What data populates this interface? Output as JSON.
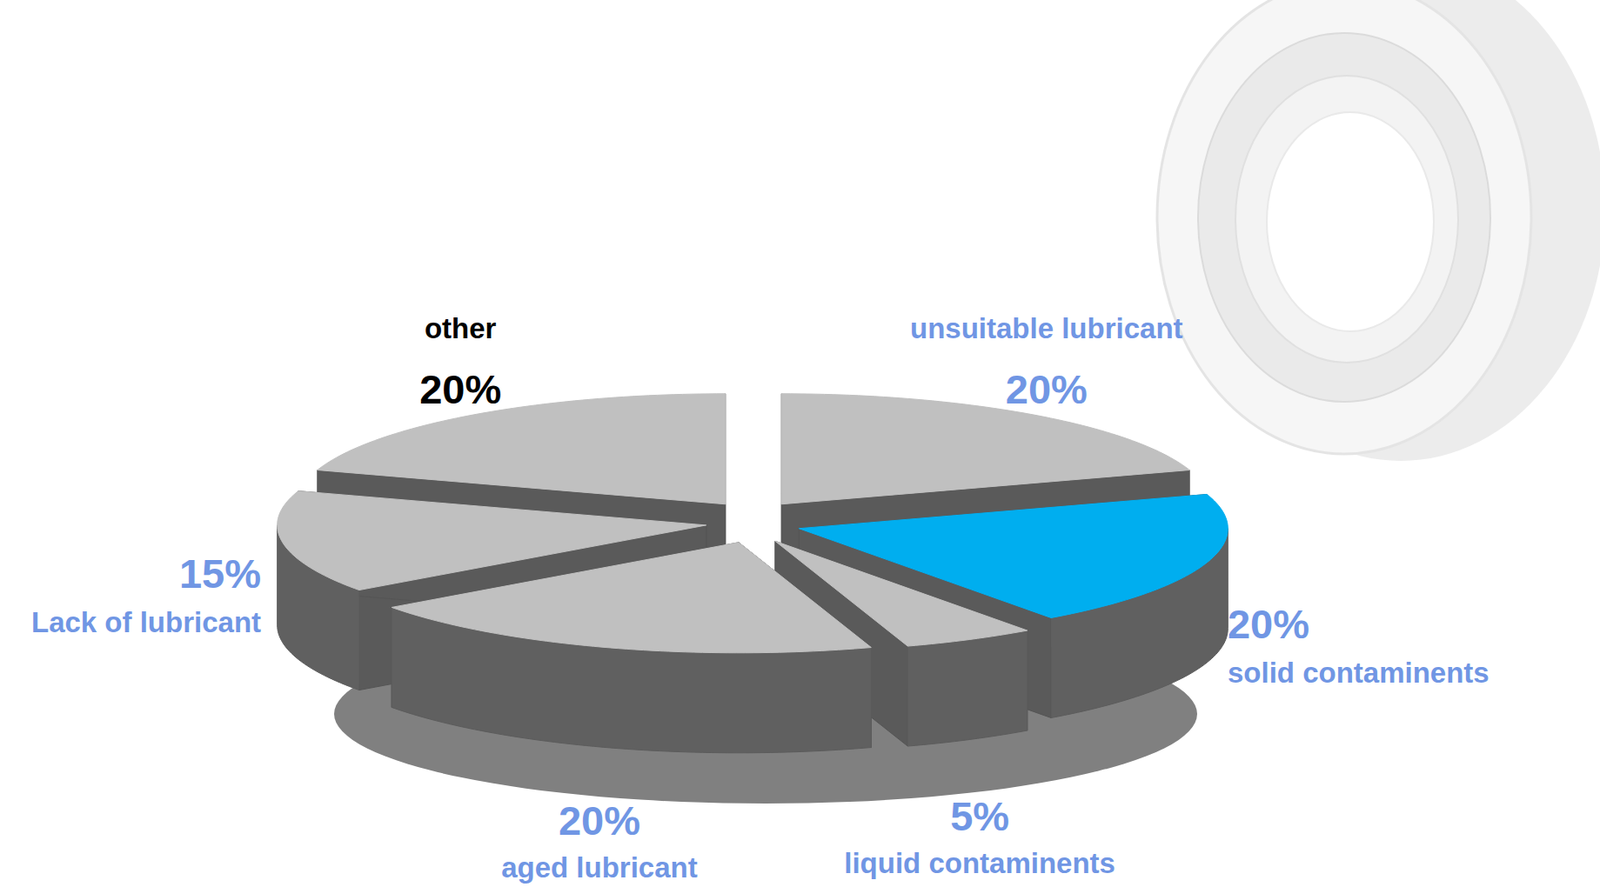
{
  "chart_data": {
    "type": "pie",
    "categories": [
      "unsuitable lubricant",
      "solid contaminents",
      "liquid contaminents",
      "aged lubricant",
      "Lack of lubricant",
      "other"
    ],
    "values": [
      20,
      20,
      5,
      20,
      15,
      20
    ],
    "value_labels": [
      "20%",
      "20%",
      "5%",
      "20%",
      "15%",
      "20%"
    ],
    "colors": [
      "#c0c0c0",
      "#00aeef",
      "#c0c0c0",
      "#c0c0c0",
      "#c0c0c0",
      "#c0c0c0"
    ],
    "data_labels": true
  }
}
